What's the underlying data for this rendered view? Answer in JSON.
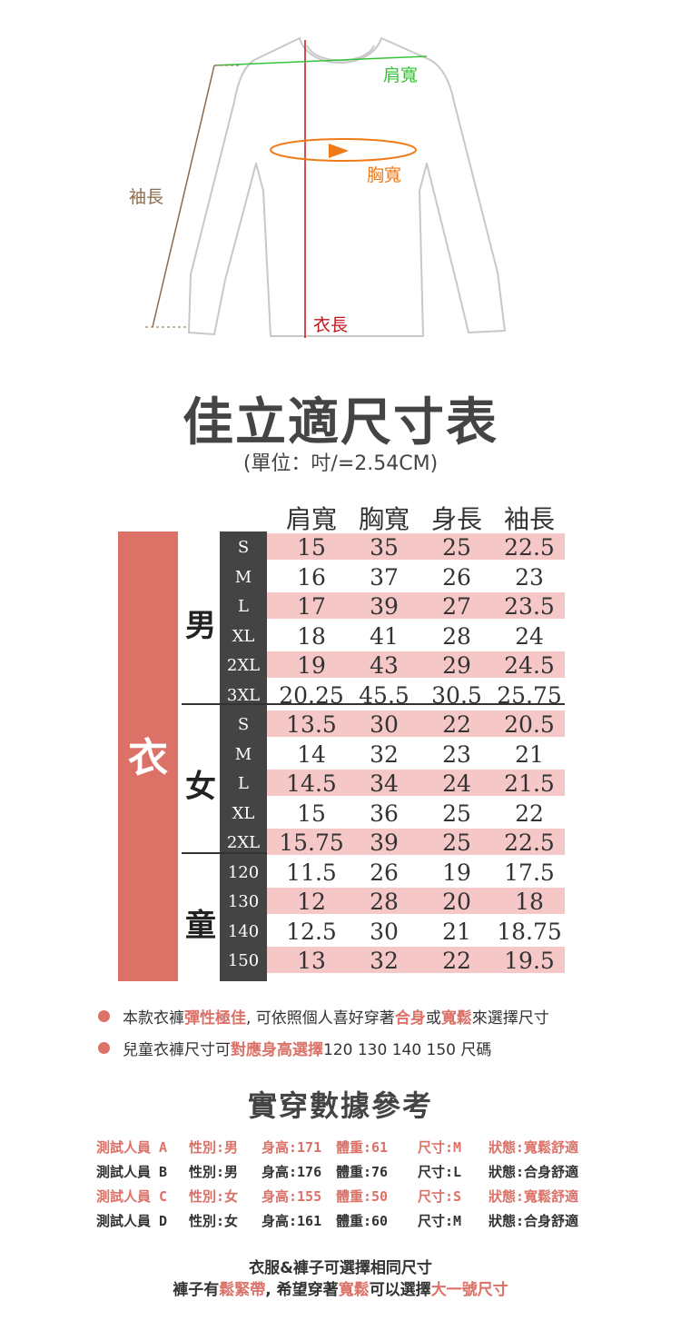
{
  "diagram": {
    "shoulder_label": "肩寬",
    "chest_label": "胸寬",
    "sleeve_label": "袖長",
    "length_label": "衣長"
  },
  "title": "佳立適尺寸表",
  "unit": "(單位：吋/=2.54CM)",
  "columns": [
    "肩寬",
    "胸寬",
    "身長",
    "袖長"
  ],
  "category": "衣",
  "groups": [
    {
      "label": "男",
      "rows": [
        {
          "size": "S",
          "values": [
            "15",
            "35",
            "25",
            "22.5"
          ]
        },
        {
          "size": "M",
          "values": [
            "16",
            "37",
            "26",
            "23"
          ]
        },
        {
          "size": "L",
          "values": [
            "17",
            "39",
            "27",
            "23.5"
          ]
        },
        {
          "size": "XL",
          "values": [
            "18",
            "41",
            "28",
            "24"
          ]
        },
        {
          "size": "2XL",
          "values": [
            "19",
            "43",
            "29",
            "24.5"
          ]
        },
        {
          "size": "3XL",
          "values": [
            "20.25",
            "45.5",
            "30.5",
            "25.75"
          ]
        }
      ]
    },
    {
      "label": "女",
      "rows": [
        {
          "size": "S",
          "values": [
            "13.5",
            "30",
            "22",
            "20.5"
          ]
        },
        {
          "size": "M",
          "values": [
            "14",
            "32",
            "23",
            "21"
          ]
        },
        {
          "size": "L",
          "values": [
            "14.5",
            "34",
            "24",
            "21.5"
          ]
        },
        {
          "size": "XL",
          "values": [
            "15",
            "36",
            "25",
            "22"
          ]
        },
        {
          "size": "2XL",
          "values": [
            "15.75",
            "39",
            "25",
            "22.5"
          ]
        }
      ]
    },
    {
      "label": "童",
      "rows": [
        {
          "size": "120",
          "values": [
            "11.5",
            "26",
            "19",
            "17.5"
          ]
        },
        {
          "size": "130",
          "values": [
            "12",
            "28",
            "20",
            "18"
          ]
        },
        {
          "size": "140",
          "values": [
            "12.5",
            "30",
            "21",
            "18.75"
          ]
        },
        {
          "size": "150",
          "values": [
            "13",
            "32",
            "22",
            "19.5"
          ]
        }
      ]
    }
  ],
  "notes": {
    "note1": {
      "a": "本款衣褲",
      "b": "彈性極佳",
      "c": ", 可依照個人喜好穿著",
      "d": "合身",
      "e": "或",
      "f": "寬鬆",
      "g": "來選擇尺寸"
    },
    "note2": {
      "a": "兒童衣褲尺寸可",
      "b": "對應身高選擇",
      "c": "120  130  140  150 尺碼"
    }
  },
  "reference": {
    "title": "實穿數據參考",
    "rows": [
      {
        "tester": "測試人員 A",
        "gender": "性別:男",
        "height": "身高:171",
        "weight": "體重:61",
        "size": "尺寸:M",
        "status": "狀態:寬鬆舒適",
        "highlight": true
      },
      {
        "tester": "測試人員 B",
        "gender": "性別:男",
        "height": "身高:176",
        "weight": "體重:76",
        "size": "尺寸:L",
        "status": "狀態:合身舒適",
        "highlight": false
      },
      {
        "tester": "測試人員 C",
        "gender": "性別:女",
        "height": "身高:155",
        "weight": "體重:50",
        "size": "尺寸:S",
        "status": "狀態:寬鬆舒適",
        "highlight": true
      },
      {
        "tester": "測試人員 D",
        "gender": "性別:女",
        "height": "身高:161",
        "weight": "體重:60",
        "size": "尺寸:M",
        "status": "狀態:合身舒適",
        "highlight": false
      }
    ]
  },
  "footer": {
    "line1": "衣服&褲子可選擇相同尺寸",
    "line2": {
      "a": "褲子有",
      "b": "鬆緊帶",
      "c": ", 希望穿著",
      "d": "寬鬆",
      "e": "可以選擇",
      "f": "大一號尺寸"
    }
  },
  "colors": {
    "accent": "#dc7168",
    "pink_row": "#f5c7c6",
    "dark": "#444444",
    "shoulder": "#35c435",
    "chest": "#f07a18",
    "length": "#c4141c",
    "sleeve": "#8a6a4a"
  }
}
